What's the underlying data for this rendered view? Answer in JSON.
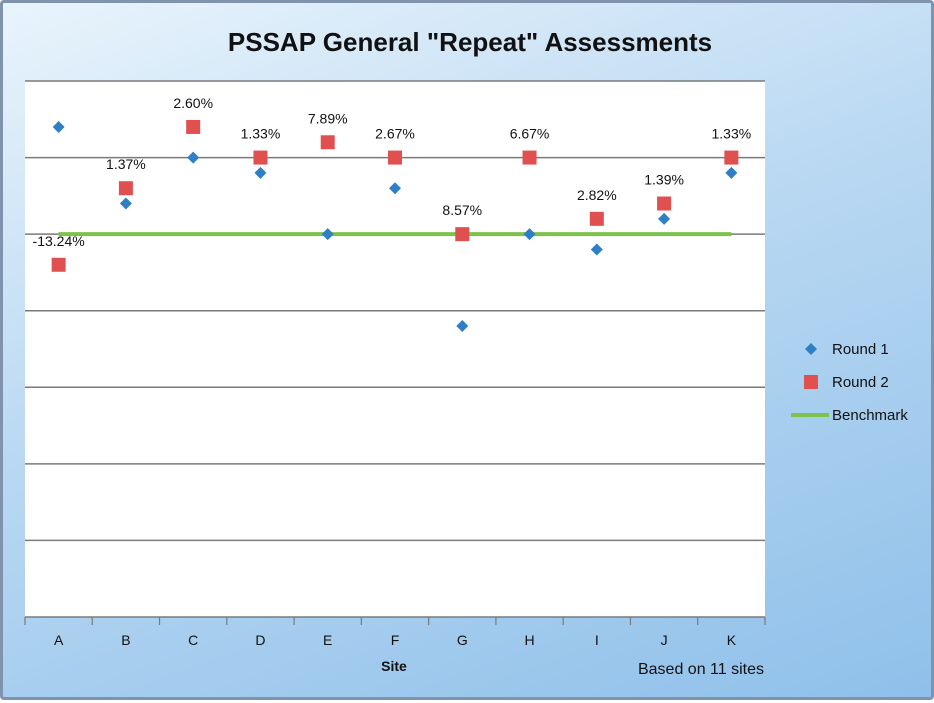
{
  "chart_data": {
    "type": "scatter",
    "title": "PSSAP General \"Repeat\" Assessments",
    "xlabel": "Site",
    "ylabel": "",
    "ylim": [
      0,
      7
    ],
    "note": "Based on 11 sites",
    "categories": [
      "A",
      "B",
      "C",
      "D",
      "E",
      "F",
      "G",
      "H",
      "I",
      "J",
      "K"
    ],
    "series": [
      {
        "name": "Round 1",
        "marker": "diamond",
        "color": "#2e7fc6",
        "values": [
          6.4,
          5.4,
          6.0,
          5.8,
          5.0,
          5.6,
          3.8,
          5.0,
          4.8,
          5.2,
          5.8
        ]
      },
      {
        "name": "Round 2",
        "marker": "square",
        "color": "#e0504f",
        "values": [
          4.6,
          5.6,
          6.4,
          6.0,
          6.2,
          6.0,
          5.0,
          6.0,
          5.2,
          5.4,
          6.0
        ],
        "labels": [
          "-13.24%",
          "1.37%",
          "2.60%",
          "1.33%",
          "7.89%",
          "2.67%",
          "8.57%",
          "6.67%",
          "2.82%",
          "1.39%",
          "1.33%"
        ]
      },
      {
        "name": "Benchmark",
        "marker": "line",
        "color": "#7dc24a",
        "values": [
          5.0,
          5.0,
          5.0,
          5.0,
          5.0,
          5.0,
          5.0,
          5.0,
          5.0,
          5.0,
          5.0
        ]
      }
    ],
    "grid": true,
    "legend": "right"
  }
}
